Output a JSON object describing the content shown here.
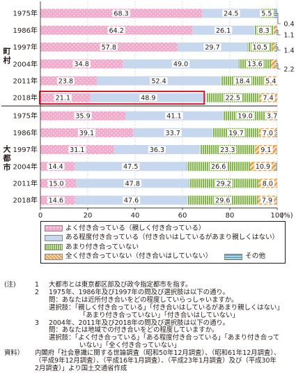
{
  "colors": {
    "close": "#f4aacb",
    "some": "#c6d7ee",
    "little": "#7cbd3f",
    "none": "#f4a24a",
    "other": "#5aa0d2",
    "highlight": "#e60012"
  },
  "chart_data": {
    "type": "bar",
    "orientation": "horizontal",
    "stacked": true,
    "groups": [
      {
        "label": "町村",
        "categories": [
          "1975年",
          "1986年",
          "1997年",
          "2004年",
          "2011年",
          "2018年"
        ]
      },
      {
        "label": "大都市",
        "categories": [
          "1975年",
          "1986年",
          "1997年",
          "2004年",
          "2011年",
          "2018年"
        ]
      }
    ],
    "series": [
      {
        "name": "よく付き合っている（親しく付き合っている）",
        "values": [
          [
            68.3,
            64.2,
            57.8,
            34.8,
            23.8,
            21.1
          ],
          [
            35.9,
            39.1,
            31.1,
            14.4,
            15.0,
            14.6
          ]
        ]
      },
      {
        "name": "ある程度付き合っている（付き合いはしているがあまり親しくはない）",
        "values": [
          [
            24.5,
            26.1,
            29.7,
            49.0,
            52.4,
            48.9
          ],
          [
            41.1,
            33.7,
            36.3,
            47.5,
            47.8,
            47.6
          ]
        ]
      },
      {
        "name": "あまり付き合っていない",
        "values": [
          [
            5.5,
            8.3,
            10.5,
            13.6,
            18.4,
            22.5
          ],
          [
            19.0,
            19.7,
            23.3,
            26.6,
            29.2,
            29.6
          ]
        ]
      },
      {
        "name": "全く付き合っていない（付き合いはしていない）",
        "values": [
          [
            0.4,
            1.1,
            1.4,
            2.2,
            5.4,
            7.4
          ],
          [
            3.7,
            7.0,
            9.1,
            10.9,
            8.0,
            7.9
          ]
        ]
      },
      {
        "name": "その他",
        "values": [
          [
            1.3,
            0.3,
            0.6,
            0.4,
            0.0,
            0.1
          ],
          [
            0.3,
            0.5,
            0.2,
            0.6,
            0.0,
            0.3
          ]
        ]
      }
    ],
    "xlim": [
      0,
      100
    ],
    "xticks": [
      "0",
      "20",
      "40",
      "60",
      "80",
      "100"
    ],
    "x_unit": "(%)",
    "outside_labels": [
      "0.4",
      "1.1",
      "1.4",
      "2.2"
    ],
    "highlighted_bar": "町村 2018年"
  },
  "legend": {
    "close": "よく付き合っている（親しく付き合っている）",
    "some": "ある程度付き合っている（付き合いはしているがあまり親しくはない）",
    "little": "あまり付き合っていない",
    "none": "全く付き合っていない（付き合いはしていない）",
    "other": "その他"
  },
  "notes": {
    "head_note": "(注)",
    "n1_num": "1",
    "n1_text": "大都市とは東京都区部及び政令指定都市を指す。",
    "n2_num": "2",
    "n2_text": "1975年、1986年及び1997年の問及び選択肢は以下の通り。",
    "n2_q": "問：あなたは近所付き合いをどの程度していらっしゃいますか。",
    "n2_c1": "選択肢：「親しく付き合っている」「付き合いはしているがあまり親しくはない」",
    "n2_c2": "「あまり付き合っていない」「付き合いはしていない」",
    "n3_num": "3",
    "n3_text": "2004年、2011年及び2018年の問及び選択肢は以下の通り。",
    "n3_q": "問：あなたは地域での付き合いをどの程度していますか。",
    "n3_c1": "選択肢：「よく付き合っている」「ある程度付き合っている」「あまり付き合って",
    "n3_c2": "いない」「全く付き合っていない」",
    "head_src": "資料）",
    "src1": "内閣府「社会意識に関する世論調査（昭和50年12月調査）、（昭和61年12月調査）、",
    "src2": "（平成9年12月調査）、（平成16年1月調査）、（平成23年1月調査）及び（平成30年",
    "src3": "2月調査）」より国土交通省作成"
  }
}
